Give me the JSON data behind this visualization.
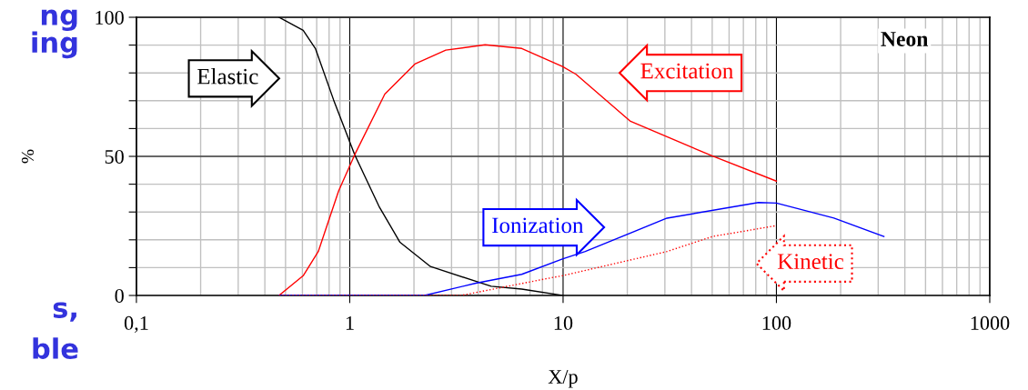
{
  "chart_data": {
    "type": "line",
    "title": "Neon",
    "xlabel": "X/p",
    "ylabel": "%",
    "log": "x",
    "xlim": [
      0.1,
      1000
    ],
    "xticks": [
      {
        "value": 0.1,
        "label": "0,1"
      },
      1,
      10,
      100,
      1000
    ],
    "ylim": [
      0,
      100
    ],
    "yticks": [
      0,
      {
        "value": 10,
        "label": null
      },
      {
        "value": 20,
        "label": null
      },
      {
        "value": 30,
        "label": null
      },
      {
        "value": 40,
        "label": null
      },
      50,
      {
        "value": 60,
        "label": null
      },
      {
        "value": 70,
        "label": null
      },
      {
        "value": 80,
        "label": null
      },
      {
        "value": 90,
        "label": null
      },
      100
    ],
    "grid": true,
    "legend": false,
    "marker": "none",
    "line_style": "solid",
    "annotations": [
      "ng",
      "ing",
      "s,",
      "ble"
    ],
    "series": [
      {
        "name": "Elastic",
        "color": "#000000",
        "x": [
          0.466,
          0.605,
          0.69,
          0.84,
          1.055,
          1.37,
          1.72,
          2.39,
          4.6,
          6.4,
          10
        ],
        "values": [
          100,
          95.3,
          88.8,
          70.3,
          50.6,
          32.1,
          19.1,
          10.4,
          3.3,
          2.3,
          0
        ]
      },
      {
        "name": "Excitation",
        "color": "#ff0000",
        "x": [
          0.466,
          0.605,
          0.712,
          0.887,
          1.055,
          1.46,
          2.03,
          2.82,
          4.31,
          6.4,
          9.93,
          11.5,
          20.7,
          50.2,
          100
        ],
        "values": [
          0,
          7.1,
          15.8,
          37.6,
          50.6,
          72.4,
          83.3,
          88.2,
          90.1,
          88.8,
          82.3,
          79.5,
          62.6,
          50.1,
          41.1
        ]
      },
      {
        "name": "Ionization",
        "color": "#0000ff",
        "x": [
          0.466,
          2.24,
          3.9,
          6.4,
          9.93,
          12.7,
          30.7,
          82.4,
          100,
          186,
          319
        ],
        "values": [
          0,
          0,
          4.4,
          7.6,
          13.1,
          15.8,
          27.8,
          33.4,
          33.2,
          27.8,
          21.2
        ]
      },
      {
        "name": "Kinetic",
        "color": "#ff0000",
        "line_style": "dotted",
        "x": [
          0.466,
          3.32,
          8.3,
          9.93,
          30.7,
          50.2,
          100
        ],
        "values": [
          0,
          0,
          6.0,
          7.1,
          15.8,
          21.2,
          25.1
        ]
      }
    ]
  }
}
